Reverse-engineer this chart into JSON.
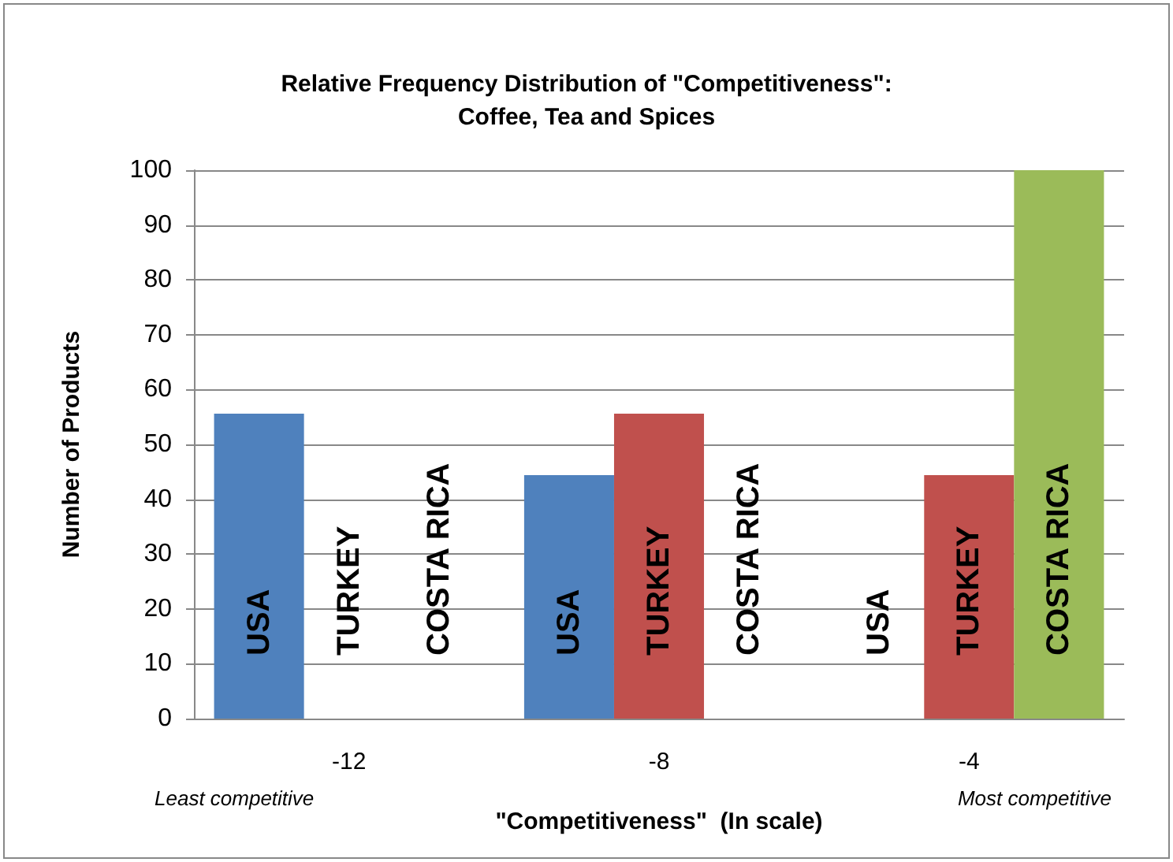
{
  "chart_data": {
    "type": "bar",
    "title": "Relative Frequency Distribution of \"Competitiveness\":\nCoffee, Tea and Spices",
    "xlabel": "\"Competitiveness\"  (In scale)",
    "ylabel": "Number of Products",
    "categories": [
      "-12",
      "-8",
      "-4"
    ],
    "series": [
      {
        "name": "USA",
        "color": "#4f81bd",
        "values": [
          55.6,
          44.4,
          0
        ]
      },
      {
        "name": "TURKEY",
        "color": "#c0504d",
        "values": [
          0,
          55.6,
          44.4
        ]
      },
      {
        "name": "COSTA RICA",
        "color": "#9bbb59",
        "values": [
          0,
          0,
          100
        ]
      }
    ],
    "ylim": [
      0,
      100
    ],
    "yticks": [
      0,
      10,
      20,
      30,
      40,
      50,
      60,
      70,
      80,
      90,
      100
    ],
    "grid": "y",
    "legend": false,
    "annotations": [
      "Least competitive",
      "Most competitive"
    ]
  }
}
